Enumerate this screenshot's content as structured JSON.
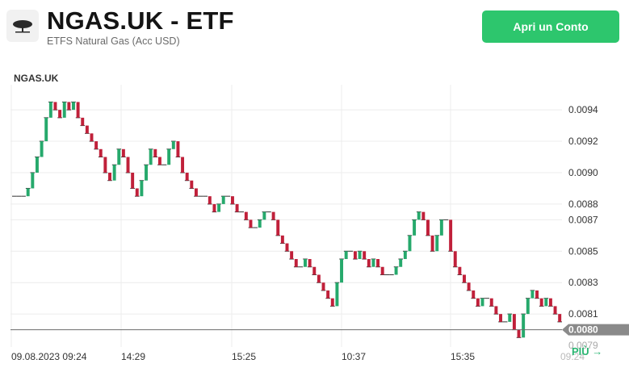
{
  "header": {
    "title": "NGAS.UK - ETF",
    "subtitle": "ETFS Natural Gas (Acc USD)",
    "cta_label": "Apri un Conto",
    "logo_icon": "tree-logo-icon"
  },
  "chart_label": "NGAS.UK",
  "more_label": "PIÙ →",
  "colors": {
    "up": "#26a96c",
    "down": "#c0203a",
    "grid": "#ececec",
    "price_line": "#6b6b6b",
    "accent": "#2dc66d"
  },
  "chart_data": {
    "type": "candlestick",
    "title": "NGAS.UK",
    "ylim": [
      0.00789,
      0.00956
    ],
    "y_ticks": [
      "0.0094",
      "0.0092",
      "0.0090",
      "0.0088",
      "0.0087",
      "0.0085",
      "0.0083",
      "0.0081"
    ],
    "partial_y_ticks": [
      "0.0079"
    ],
    "x_ticks": [
      "09.08.2023 09:24",
      "14:29",
      "15:25",
      "10:37",
      "15:35"
    ],
    "partial_x_tick": "09:24",
    "last_price": "0.0080",
    "grid": true,
    "close_series": [
      0.00885,
      0.00885,
      0.00885,
      0.0089,
      0.009,
      0.0091,
      0.0092,
      0.00935,
      0.00945,
      0.0094,
      0.00935,
      0.00945,
      0.0094,
      0.00945,
      0.00935,
      0.0093,
      0.00925,
      0.0092,
      0.00915,
      0.0091,
      0.009,
      0.00895,
      0.00905,
      0.00915,
      0.0091,
      0.009,
      0.0089,
      0.00885,
      0.00895,
      0.00905,
      0.00915,
      0.0091,
      0.00905,
      0.00905,
      0.00915,
      0.0092,
      0.0091,
      0.009,
      0.00895,
      0.0089,
      0.00885,
      0.00885,
      0.00885,
      0.0088,
      0.00875,
      0.0088,
      0.00885,
      0.00885,
      0.0088,
      0.00875,
      0.00875,
      0.0087,
      0.00865,
      0.00865,
      0.0087,
      0.00875,
      0.00875,
      0.0087,
      0.0086,
      0.00855,
      0.0085,
      0.00845,
      0.0084,
      0.0084,
      0.00845,
      0.0084,
      0.00835,
      0.0083,
      0.00825,
      0.0082,
      0.00815,
      0.0083,
      0.00845,
      0.0085,
      0.0085,
      0.00845,
      0.0085,
      0.00845,
      0.0084,
      0.00845,
      0.0084,
      0.00835,
      0.00835,
      0.00835,
      0.0084,
      0.00845,
      0.0085,
      0.0086,
      0.0087,
      0.00875,
      0.0087,
      0.0086,
      0.0085,
      0.0086,
      0.0087,
      0.0087,
      0.0085,
      0.0084,
      0.00835,
      0.0083,
      0.00825,
      0.0082,
      0.00815,
      0.0082,
      0.0082,
      0.00815,
      0.0081,
      0.00805,
      0.00805,
      0.0081,
      0.008,
      0.00795,
      0.0081,
      0.0082,
      0.00825,
      0.0082,
      0.00815,
      0.0082,
      0.00815,
      0.0081,
      0.00805
    ]
  }
}
